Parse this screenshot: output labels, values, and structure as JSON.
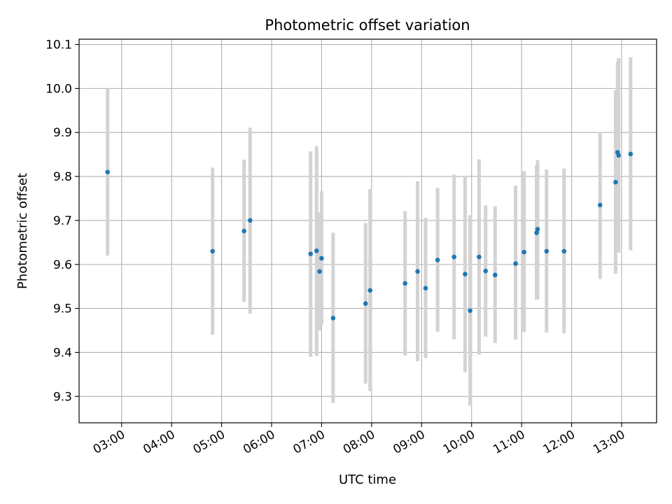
{
  "chart_data": {
    "type": "scatter",
    "title": "Photometric offset variation",
    "xlabel": "UTC time",
    "ylabel": "Photometric offset",
    "x_unit": "hours UTC",
    "xlim": [
      2.15,
      13.7
    ],
    "ylim": [
      9.24,
      10.112
    ],
    "xtick_values": [
      3,
      4,
      5,
      6,
      7,
      8,
      9,
      10,
      11,
      12,
      13
    ],
    "xtick_labels": [
      "03:00",
      "04:00",
      "05:00",
      "06:00",
      "07:00",
      "08:00",
      "09:00",
      "10:00",
      "11:00",
      "12:00",
      "13:00"
    ],
    "ytick_values": [
      9.3,
      9.4,
      9.5,
      9.6,
      9.7,
      9.8,
      9.9,
      10.0,
      10.1
    ],
    "ytick_labels": [
      "9.3",
      "9.4",
      "9.5",
      "9.6",
      "9.7",
      "9.8",
      "9.9",
      "10.0",
      "10.1"
    ],
    "grid": true,
    "point_color": "#1f77b4",
    "errorbar_color": "#d3d3d3",
    "points": [
      {
        "x": 2.72,
        "y": 9.81,
        "low": 9.62,
        "high": 10.0
      },
      {
        "x": 4.82,
        "y": 9.63,
        "low": 9.44,
        "high": 9.82
      },
      {
        "x": 5.45,
        "y": 9.676,
        "low": 9.515,
        "high": 9.838
      },
      {
        "x": 5.57,
        "y": 9.7,
        "low": 9.488,
        "high": 9.911
      },
      {
        "x": 6.78,
        "y": 9.624,
        "low": 9.39,
        "high": 9.857
      },
      {
        "x": 6.9,
        "y": 9.631,
        "low": 9.392,
        "high": 9.869
      },
      {
        "x": 6.96,
        "y": 9.584,
        "low": 9.45,
        "high": 9.718
      },
      {
        "x": 7.0,
        "y": 9.614,
        "low": 9.463,
        "high": 9.766
      },
      {
        "x": 7.23,
        "y": 9.478,
        "low": 9.285,
        "high": 9.672
      },
      {
        "x": 7.88,
        "y": 9.511,
        "low": 9.329,
        "high": 9.694
      },
      {
        "x": 7.97,
        "y": 9.541,
        "low": 9.312,
        "high": 9.771
      },
      {
        "x": 8.67,
        "y": 9.557,
        "low": 9.393,
        "high": 9.721
      },
      {
        "x": 8.92,
        "y": 9.584,
        "low": 9.38,
        "high": 9.789
      },
      {
        "x": 9.08,
        "y": 9.546,
        "low": 9.387,
        "high": 9.706
      },
      {
        "x": 9.32,
        "y": 9.61,
        "low": 9.447,
        "high": 9.774
      },
      {
        "x": 9.65,
        "y": 9.617,
        "low": 9.43,
        "high": 9.804
      },
      {
        "x": 9.87,
        "y": 9.578,
        "low": 9.355,
        "high": 9.802
      },
      {
        "x": 9.97,
        "y": 9.495,
        "low": 9.279,
        "high": 9.712
      },
      {
        "x": 10.15,
        "y": 9.617,
        "low": 9.395,
        "high": 9.839
      },
      {
        "x": 10.28,
        "y": 9.585,
        "low": 9.436,
        "high": 9.734
      },
      {
        "x": 10.47,
        "y": 9.576,
        "low": 9.421,
        "high": 9.732
      },
      {
        "x": 10.88,
        "y": 9.602,
        "low": 9.429,
        "high": 9.779
      },
      {
        "x": 11.05,
        "y": 9.628,
        "low": 9.446,
        "high": 9.812
      },
      {
        "x": 11.3,
        "y": 9.672,
        "low": 9.52,
        "high": 9.826
      },
      {
        "x": 11.32,
        "y": 9.68,
        "low": 9.521,
        "high": 9.837
      },
      {
        "x": 11.5,
        "y": 9.63,
        "low": 9.445,
        "high": 9.816
      },
      {
        "x": 11.85,
        "y": 9.63,
        "low": 9.443,
        "high": 9.818
      },
      {
        "x": 12.57,
        "y": 9.735,
        "low": 9.567,
        "high": 9.901
      },
      {
        "x": 12.88,
        "y": 9.787,
        "low": 9.579,
        "high": 9.996
      },
      {
        "x": 12.92,
        "y": 9.855,
        "low": 9.64,
        "high": 10.06
      },
      {
        "x": 12.94,
        "y": 9.848,
        "low": 9.627,
        "high": 10.069
      },
      {
        "x": 13.18,
        "y": 9.851,
        "low": 9.632,
        "high": 10.071
      }
    ]
  }
}
